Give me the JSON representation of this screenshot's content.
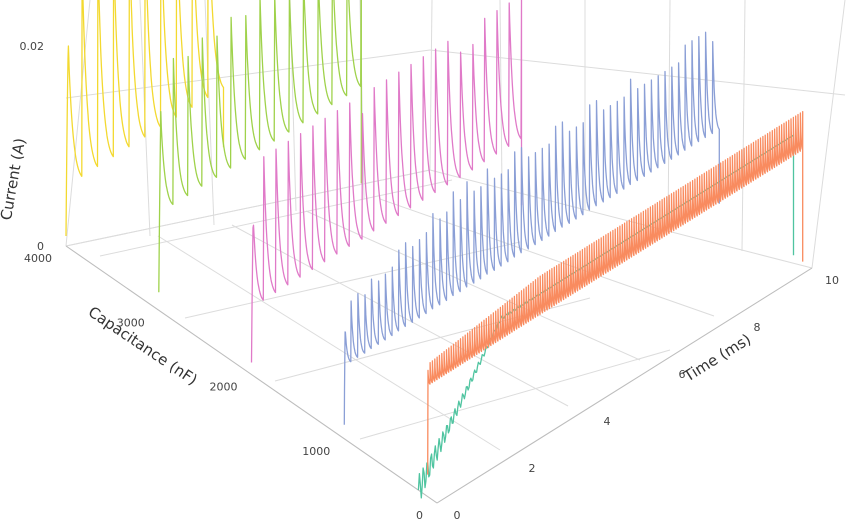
{
  "chart_data": {
    "type": "line",
    "projection": "3d",
    "x_axis": {
      "label": "Time (ms)",
      "range": [
        0,
        10
      ],
      "ticks": [
        0,
        2,
        4,
        6,
        8,
        10
      ]
    },
    "y_axis": {
      "label": "Capacitance (nF)",
      "range": [
        0,
        4000
      ],
      "ticks": [
        0,
        1000,
        2000,
        3000,
        4000
      ]
    },
    "z_axis": {
      "label": "Current (A)",
      "range": [
        0,
        0.03
      ],
      "ticks": [
        0,
        0.02
      ],
      "tick_labels": [
        "0",
        "0.02"
      ]
    },
    "grid": true,
    "legend": "none",
    "series": [
      {
        "capacitance": 4000,
        "color": "#f3d930",
        "pulses": 10,
        "t_start": 0.0,
        "t_end": 4.2,
        "peak": 0.029,
        "trough": 0.005
      },
      {
        "capacitance": 3000,
        "color": "#9fd24b",
        "pulses": 14,
        "t_start": 0.0,
        "t_end": 5.4,
        "peak": 0.025,
        "trough": 0.009
      },
      {
        "capacitance": 2000,
        "color": "#e07ac8",
        "pulses": 22,
        "t_start": 0.0,
        "t_end": 7.2,
        "peak": 0.021,
        "trough": 0.006
      },
      {
        "capacitance": 1000,
        "color": "#8b9fd6",
        "pulses": 55,
        "t_start": 0.0,
        "t_end": 10.0,
        "peak": 0.018,
        "trough": 0.007
      },
      {
        "capacitance": 200,
        "color": "#4fc4a0",
        "pulses": 0,
        "t_start": 0.0,
        "t_end": 10.0,
        "peak": 0.014,
        "trough": 0.012
      },
      {
        "capacitance": 100,
        "color": "#f98b5f",
        "pulses": 160,
        "t_start": 0.0,
        "t_end": 10.0,
        "peak": 0.015,
        "trough": 0.011
      }
    ]
  }
}
